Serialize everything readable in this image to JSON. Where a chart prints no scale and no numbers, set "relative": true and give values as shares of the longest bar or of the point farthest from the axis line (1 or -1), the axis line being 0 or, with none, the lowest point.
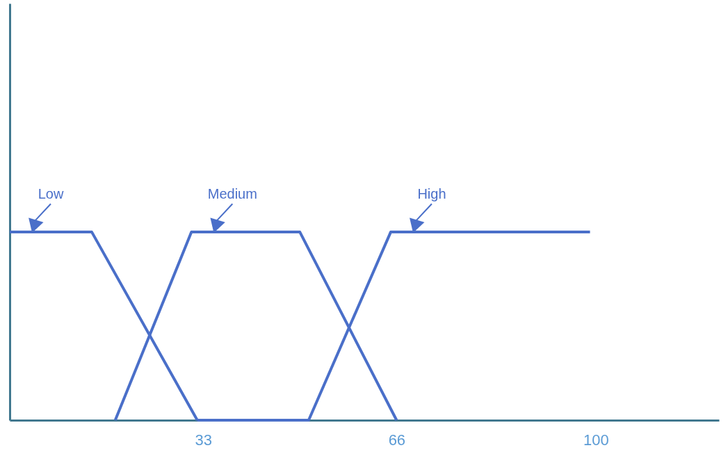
{
  "chart_data": {
    "type": "line",
    "relative": true,
    "xlim": [
      0,
      121
    ],
    "xticks": [
      33,
      66,
      100
    ],
    "series": [
      {
        "name": "Low",
        "color": "#4a6fc9",
        "x": [
          0,
          14,
          32
        ],
        "values": [
          1,
          1,
          0
        ]
      },
      {
        "name": "Medium",
        "color": "#4a6fc9",
        "x": [
          18,
          31,
          49.5,
          66
        ],
        "values": [
          0,
          1,
          1,
          0
        ]
      },
      {
        "name": "High",
        "color": "#4a6fc9",
        "x": [
          32,
          51,
          65,
          99
        ],
        "values": [
          0,
          0,
          1,
          1
        ]
      }
    ]
  }
}
